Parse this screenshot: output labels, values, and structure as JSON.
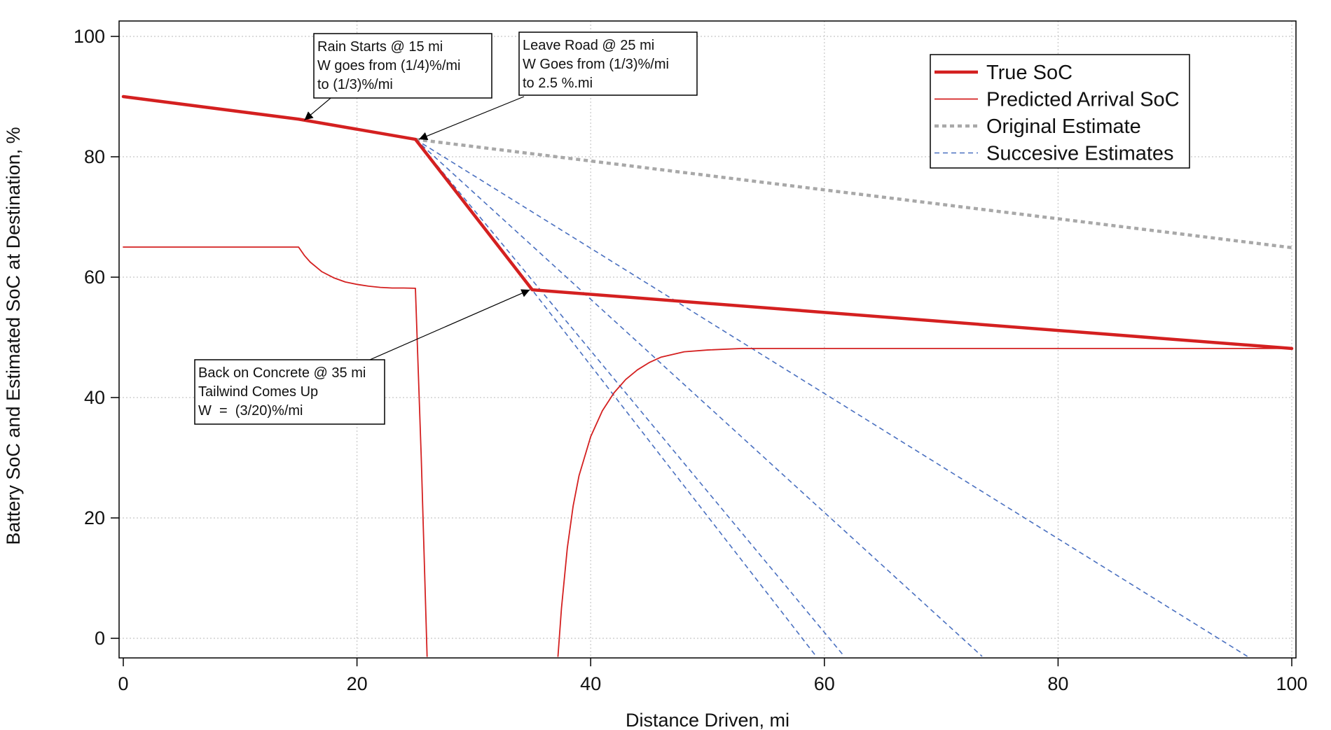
{
  "chart_data": {
    "type": "line",
    "title": "",
    "xlabel": "Distance Driven, mi",
    "ylabel": "Battery SoC and Estimated SoC at Destination, %",
    "xlim": [
      0,
      100
    ],
    "ylim": [
      -3,
      102
    ],
    "xticks": [
      0,
      20,
      40,
      60,
      80,
      100
    ],
    "yticks": [
      0,
      20,
      40,
      60,
      80,
      100
    ],
    "grid": true,
    "legend_position": "top-right",
    "series": [
      {
        "name": "True SoC",
        "color": "#d42020",
        "style": "solid-thick",
        "x": [
          0,
          15,
          25,
          35,
          100
        ],
        "y": [
          90,
          86.25,
          82.9,
          57.9,
          48.15
        ]
      },
      {
        "name": "Predicted Arrival SoC",
        "color": "#d42020",
        "style": "solid-thin",
        "segments": [
          {
            "x": [
              0,
              15,
              15.5,
              16,
              17,
              18,
              19,
              20,
              21,
              22,
              23,
              24,
              25.0,
              25.5,
              26.0
            ],
            "y": [
              65,
              65,
              63.6,
              62.5,
              60.9,
              59.9,
              59.2,
              58.8,
              58.5,
              58.3,
              58.2,
              58.2,
              58.15,
              30,
              -3
            ]
          },
          {
            "x": [
              37.2,
              37.5,
              38,
              38.5,
              39,
              40,
              41,
              42,
              43,
              44,
              45,
              46,
              48,
              50,
              53,
              100
            ],
            "y": [
              -3,
              5,
              15,
              22,
              27,
              33.5,
              37.8,
              40.8,
              43,
              44.6,
              45.8,
              46.7,
              47.6,
              47.9,
              48.15,
              48.15
            ]
          }
        ]
      },
      {
        "name": "Original Estimate",
        "color": "#a8a8a8",
        "style": "dotted-thick",
        "x": [
          25,
          100
        ],
        "y": [
          82.9,
          64.9
        ]
      },
      {
        "name": "Succesive Estimates",
        "color": "#4a70c0",
        "style": "dashed-thin",
        "lines": [
          {
            "x": [
              25,
              59.3
            ],
            "y": [
              82.9,
              -3
            ]
          },
          {
            "x": [
              25,
              61.7
            ],
            "y": [
              82.9,
              -3
            ]
          },
          {
            "x": [
              25,
              73.5
            ],
            "y": [
              82.9,
              -3
            ]
          },
          {
            "x": [
              25,
              96.2
            ],
            "y": [
              82.9,
              -3
            ]
          }
        ]
      }
    ],
    "annotations": [
      {
        "id": "rain",
        "lines": [
          "Rain Starts @ 15 mi",
          "W goes from (1/4)%/mi",
          "to (1/3)%/mi"
        ],
        "arrow_to": [
          15.5,
          86.1
        ]
      },
      {
        "id": "leave-road",
        "lines": [
          "Leave Road @ 25 mi",
          "W Goes from (1/3)%/mi",
          "to 2.5 %.mi"
        ],
        "arrow_to": [
          25.3,
          82.9
        ]
      },
      {
        "id": "concrete",
        "lines": [
          "Back on Concrete @ 35 mi",
          "Tailwind Comes Up",
          "W  =  (3/20)%/mi"
        ],
        "arrow_to": [
          34.8,
          57.9
        ]
      }
    ],
    "legend": [
      {
        "label": "True SoC",
        "series": "True SoC"
      },
      {
        "label": "Predicted Arrival SoC",
        "series": "Predicted Arrival SoC"
      },
      {
        "label": "Original Estimate",
        "series": "Original Estimate"
      },
      {
        "label": "Succesive Estimates",
        "series": "Succesive Estimates"
      }
    ]
  }
}
